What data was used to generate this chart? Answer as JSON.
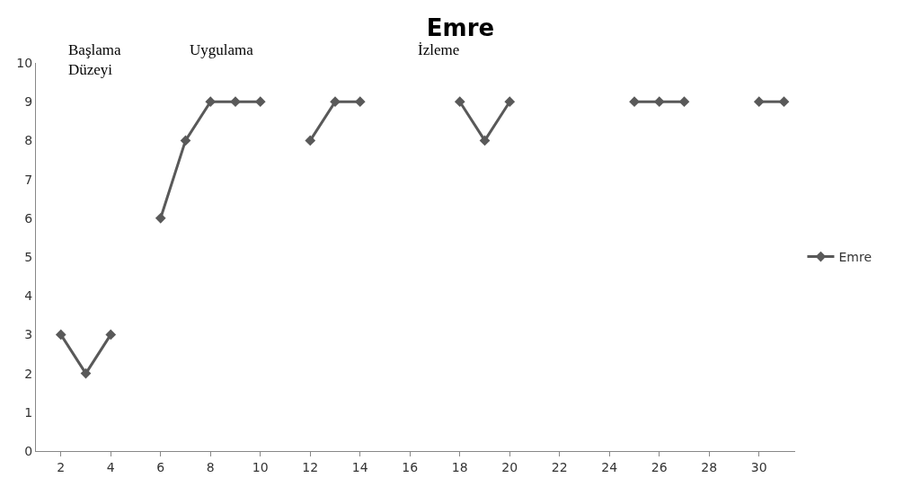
{
  "chart_data": {
    "type": "line",
    "title": "Emre",
    "x": [
      2,
      3,
      4,
      5,
      6,
      7,
      8,
      9,
      10,
      11,
      12,
      13,
      14,
      15,
      16,
      17,
      18,
      19,
      20,
      21,
      22,
      23,
      24,
      25,
      26,
      27,
      28,
      29,
      30,
      31
    ],
    "series": [
      {
        "name": "Emre",
        "color": "#595959",
        "values": [
          3,
          2,
          3,
          null,
          6,
          8,
          9,
          9,
          9,
          null,
          8,
          9,
          9,
          null,
          null,
          null,
          9,
          8,
          9,
          null,
          null,
          null,
          null,
          9,
          9,
          9,
          null,
          null,
          9,
          9
        ]
      }
    ],
    "xlim": [
      1,
      31.45
    ],
    "xticks": [
      2,
      4,
      6,
      8,
      10,
      12,
      14,
      16,
      18,
      20,
      22,
      24,
      26,
      28,
      30
    ],
    "ylim": [
      0,
      10
    ],
    "yticks": [
      0,
      1,
      2,
      3,
      4,
      5,
      6,
      7,
      8,
      9,
      10
    ],
    "annotations": [
      "Başlama\nDüzeyi",
      "Uygulama",
      "İzleme"
    ],
    "legend": "right",
    "marker": "diamond",
    "line_style": "solid"
  }
}
